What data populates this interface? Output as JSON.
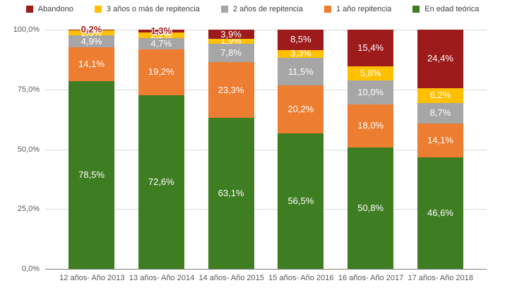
{
  "chart_data": {
    "type": "bar",
    "stacked": true,
    "title": "",
    "categories": [
      "12 años- Año 2013",
      "13 años- Año 2014",
      "14 años- Año 2015",
      "15 años- Año 2016",
      "16 años- Año 2017",
      "17 años- Año 2018"
    ],
    "series": [
      {
        "name": "En edad teórica",
        "color": "#3E7D22",
        "values": [
          78.5,
          72.6,
          63.1,
          56.5,
          50.8,
          46.6
        ]
      },
      {
        "name": "1 año repitencia",
        "color": "#ED7D31",
        "values": [
          14.1,
          19.2,
          23.3,
          20.2,
          18.0,
          14.1
        ]
      },
      {
        "name": "2 años de repitencia",
        "color": "#A6A6A6",
        "values": [
          4.9,
          4.7,
          7.8,
          11.5,
          10.0,
          8.7
        ]
      },
      {
        "name": "3 años o más de repitencia",
        "color": "#FFC000",
        "values": [
          2.3,
          2.2,
          1.9,
          3.3,
          5.8,
          6.2
        ]
      },
      {
        "name": "Abandono",
        "color": "#9E1B1B",
        "values": [
          0.2,
          1.3,
          3.9,
          8.5,
          15.4,
          24.4
        ]
      }
    ],
    "data_labels": {
      "visible": true,
      "decimal_separator": ",",
      "suffix": "%",
      "outside": [
        {
          "series": "Abandono",
          "category_index": 0
        },
        {
          "series": "Abandono",
          "category_index": 1
        }
      ]
    },
    "y_axis": {
      "min": 0,
      "max": 100,
      "tick_step": 25,
      "tick_labels": [
        "0,0%",
        "25,0%",
        "50,0%",
        "75,0%",
        "100,0%"
      ]
    },
    "legend": {
      "position": "top",
      "order": [
        "Abandono",
        "3 años o más de repitencia",
        "2 años de repitencia",
        "1 año repitencia",
        "En edad teórica"
      ]
    },
    "grid": true
  },
  "colors": {
    "gridline": "#D9D9D9",
    "axis_line": "#808080",
    "axis_text": "#595959",
    "legend_text": "#404040",
    "data_label_text": "#FFFFFF",
    "outside_label_text": "#9E1B1B"
  }
}
